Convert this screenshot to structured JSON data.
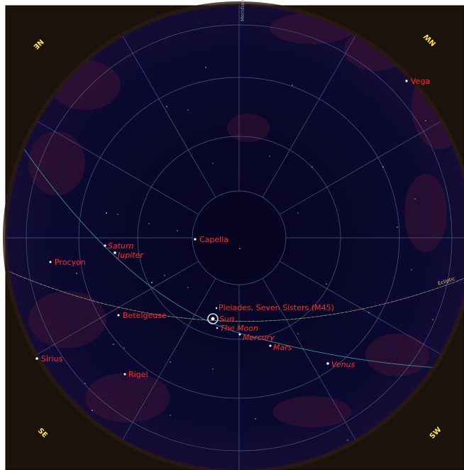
{
  "map": {
    "colors": {
      "sky": "#08062a",
      "grid": "#5f6f99",
      "ecliptic": "#d9c48a",
      "equator": "#3fa4a6",
      "label": "#ff2a2a",
      "direction": "#ffe84a",
      "horizon": "#3a2a1e"
    },
    "directions": {
      "ne": "NE",
      "nw": "NW",
      "se": "SE",
      "sw": "SW"
    },
    "meridian_label": "Meridian",
    "ecliptic_label": "Ecliptic",
    "stars": [
      {
        "name": "Capella",
        "label": "Capella"
      },
      {
        "name": "Vega",
        "label": "Vega"
      },
      {
        "name": "Procyon",
        "label": "Procyon"
      },
      {
        "name": "Betelgeuse",
        "label": "Betelgeuse"
      },
      {
        "name": "Sirius",
        "label": "Sirius"
      },
      {
        "name": "Rigel",
        "label": "Rigel"
      },
      {
        "name": "Pleiades",
        "label": "Pleiades, Seven Sisters (M45)"
      }
    ],
    "planets": [
      {
        "name": "Saturn",
        "label": "Saturn"
      },
      {
        "name": "Jupiter",
        "label": "Jupiter"
      },
      {
        "name": "Sun",
        "label": "Sun"
      },
      {
        "name": "Moon",
        "label": "The Moon"
      },
      {
        "name": "Mercury",
        "label": "Mercury"
      },
      {
        "name": "Mars",
        "label": "Mars"
      },
      {
        "name": "Venus",
        "label": "Venus"
      }
    ]
  }
}
